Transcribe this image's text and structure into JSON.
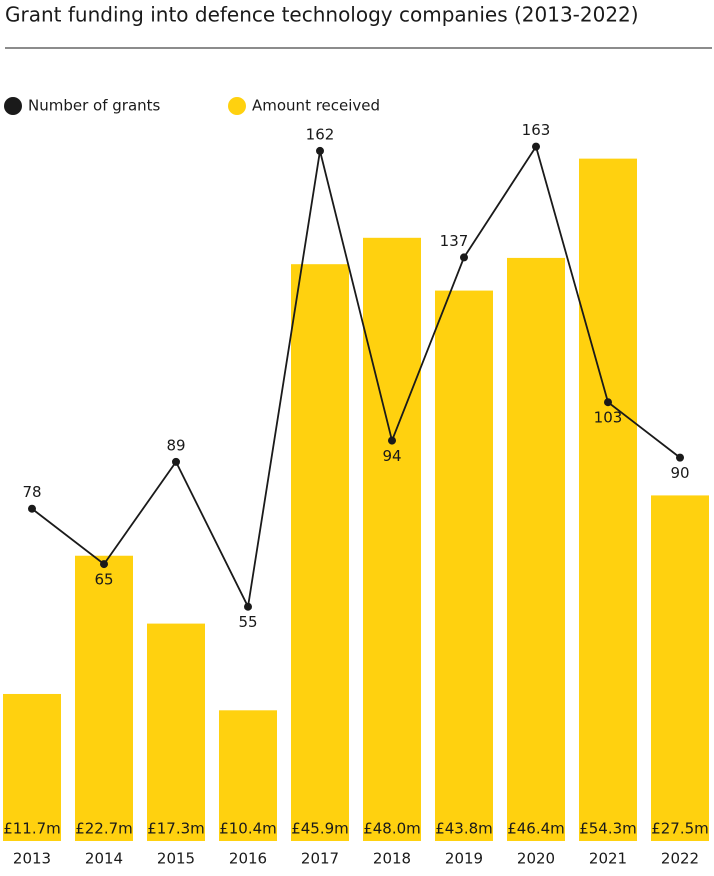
{
  "chart_data": {
    "type": "bar-line",
    "title": "Grant funding into defence technology companies (2013-2022)",
    "categories": [
      "2013",
      "2014",
      "2015",
      "2016",
      "2017",
      "2018",
      "2019",
      "2020",
      "2021",
      "2022"
    ],
    "series": [
      {
        "name": "Amount received",
        "type": "bar",
        "color": "#ffd10f",
        "values": [
          11.7,
          22.7,
          17.3,
          10.4,
          45.9,
          48.0,
          43.8,
          46.4,
          54.3,
          27.5
        ],
        "value_labels": [
          "£11.7m",
          "£22.7m",
          "£17.3m",
          "£10.4m",
          "£45.9m",
          "£48.0m",
          "£43.8m",
          "£46.4m",
          "£54.3m",
          "£27.5m"
        ]
      },
      {
        "name": "Number of grants",
        "type": "line",
        "axis": "y2",
        "color": "#1a1a1a",
        "values": [
          78,
          65,
          89,
          55,
          162,
          94,
          137,
          163,
          103,
          90
        ]
      }
    ],
    "ylim": [
      0,
      60
    ],
    "y2lim": [
      0,
      177
    ]
  }
}
